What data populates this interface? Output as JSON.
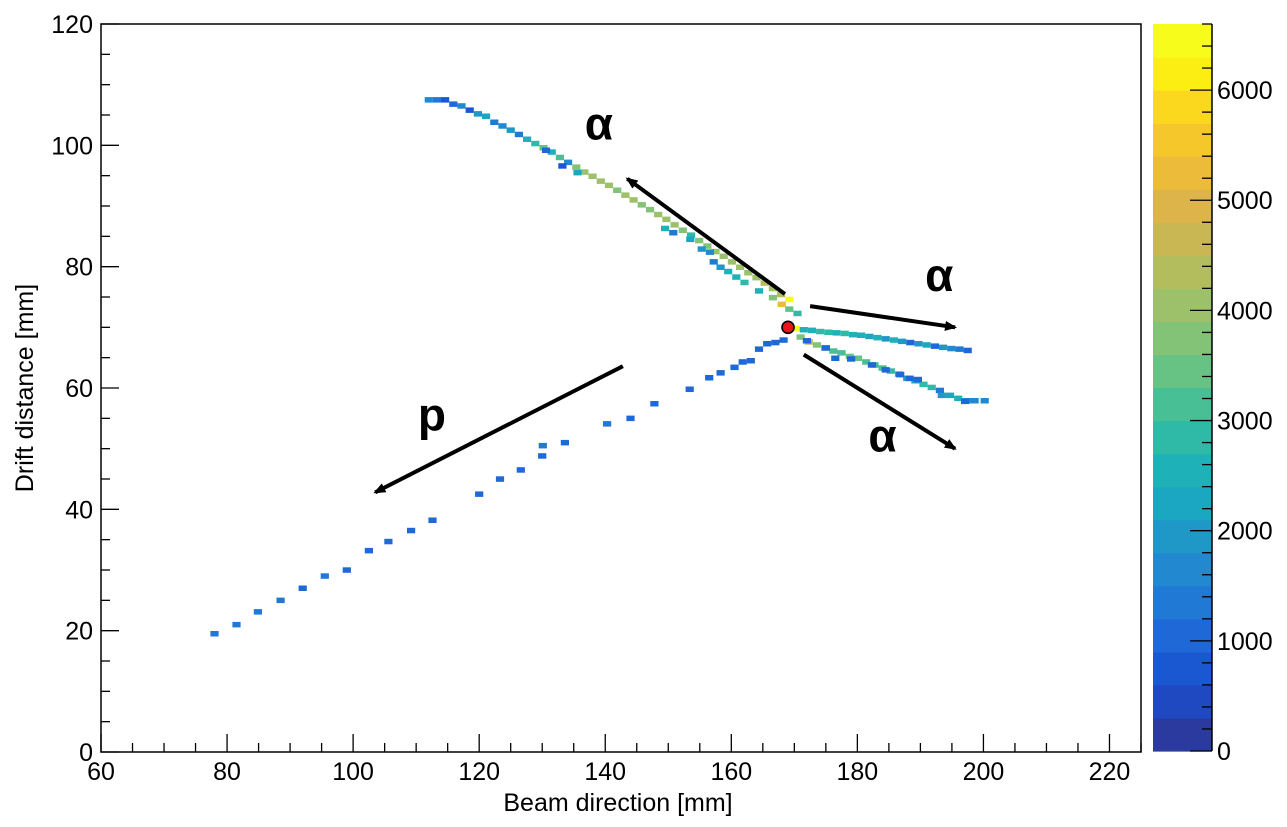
{
  "chart_data": {
    "type": "heatmap",
    "title": "",
    "xlabel": "Beam direction [mm]",
    "ylabel": "Drift distance [mm]",
    "xlim": [
      60,
      225
    ],
    "ylim": [
      0,
      120
    ],
    "x_ticks": [
      60,
      80,
      100,
      120,
      140,
      160,
      180,
      200,
      220
    ],
    "y_ticks": [
      0,
      20,
      40,
      60,
      80,
      100,
      120
    ],
    "colorbar": {
      "range": [
        0,
        6600
      ],
      "ticks": [
        0,
        1000,
        2000,
        3000,
        4000,
        5000,
        6000
      ],
      "colors": [
        "#2a3a9e",
        "#1f49c0",
        "#1a58d2",
        "#1e68d8",
        "#2179d6",
        "#2289d0",
        "#1f98c8",
        "#1ba6c2",
        "#1eb2b8",
        "#2fbaa7",
        "#48bf94",
        "#66c383",
        "#82c377",
        "#9cc16a",
        "#b4bd5e",
        "#c9b753",
        "#dcb44a",
        "#ecbb3a",
        "#f6c72b",
        "#fbd81e",
        "#fcee12",
        "#f7fc1b"
      ]
    },
    "vertex": {
      "x": 169.0,
      "y": 70.0,
      "color": "#e8151b"
    },
    "tracks": [
      {
        "name": "alpha-1",
        "bins": [
          [
            112,
            107.5,
            1500
          ],
          [
            113.3,
            107.5,
            1200
          ],
          [
            114.6,
            107.5,
            600
          ],
          [
            115.9,
            106.8,
            1000
          ],
          [
            117.2,
            106.5,
            1600
          ],
          [
            118.5,
            105.8,
            700
          ],
          [
            119.8,
            105.2,
            1800
          ],
          [
            121.1,
            104.8,
            2200
          ],
          [
            122.4,
            103.8,
            1300
          ],
          [
            123.7,
            103.2,
            1700
          ],
          [
            125,
            102.5,
            2000
          ],
          [
            126.3,
            101.8,
            1200
          ],
          [
            127.6,
            101.0,
            2600
          ],
          [
            128.9,
            100.3,
            2800
          ],
          [
            130.2,
            99.6,
            3400
          ],
          [
            131.5,
            98.9,
            2500
          ],
          [
            132.8,
            98.0,
            3200
          ],
          [
            134.1,
            97.2,
            1500
          ],
          [
            135.4,
            96.4,
            3700
          ],
          [
            136.7,
            95.6,
            3900
          ],
          [
            138.0,
            94.9,
            4100
          ],
          [
            139.3,
            94.1,
            3900
          ],
          [
            140.6,
            93.4,
            4000
          ],
          [
            141.9,
            92.6,
            3700
          ],
          [
            143.2,
            91.8,
            4000
          ],
          [
            144.5,
            91.0,
            4100
          ],
          [
            145.8,
            90.2,
            3800
          ],
          [
            147.1,
            89.4,
            3800
          ],
          [
            148.4,
            88.6,
            3900
          ],
          [
            149.7,
            87.8,
            4000
          ],
          [
            151.0,
            86.9,
            3900
          ],
          [
            152.3,
            86.0,
            3700
          ],
          [
            153.6,
            85.2,
            2800
          ],
          [
            154.9,
            84.3,
            3600
          ],
          [
            156.2,
            83.4,
            3800
          ],
          [
            157.5,
            82.5,
            3900
          ],
          [
            158.8,
            81.7,
            4000
          ],
          [
            160.1,
            80.8,
            4000
          ],
          [
            161.4,
            79.9,
            3900
          ],
          [
            162.7,
            79.0,
            4100
          ],
          [
            164.0,
            78.2,
            4000
          ],
          [
            165.3,
            77.3,
            4200
          ],
          [
            166.6,
            76.4,
            3900
          ],
          [
            167.9,
            75.4,
            4300
          ],
          [
            169.2,
            74.6,
            6500
          ]
        ]
      },
      {
        "name": "alpha-1-extra",
        "bins": [
          [
            130.6,
            99.2,
            1000
          ],
          [
            133.2,
            96.6,
            800
          ],
          [
            135.6,
            95.5,
            2200
          ],
          [
            149.5,
            86.3,
            2400
          ],
          [
            150.8,
            85.6,
            1400
          ],
          [
            153.5,
            84.5,
            2200
          ],
          [
            155.3,
            82.9,
            1800
          ],
          [
            156.6,
            82.4,
            1600
          ],
          [
            157.2,
            80.8,
            1400
          ],
          [
            158.3,
            79.9,
            2000
          ],
          [
            159.5,
            79.2,
            2500
          ],
          [
            160.8,
            78.3,
            2600
          ],
          [
            162.1,
            77.4,
            2800
          ],
          [
            164.4,
            76.0,
            2600
          ],
          [
            166.6,
            74.9,
            3800
          ],
          [
            168.0,
            73.8,
            5100
          ],
          [
            169.2,
            73.0,
            3400
          ],
          [
            170.5,
            72.3,
            2800
          ]
        ]
      },
      {
        "name": "alpha-2",
        "bins": [
          [
            170.2,
            69.8,
            6400
          ],
          [
            171.5,
            69.6,
            2500
          ],
          [
            172.8,
            69.5,
            2600
          ],
          [
            174.1,
            69.3,
            2800
          ],
          [
            175.4,
            69.2,
            2700
          ],
          [
            176.7,
            69.1,
            2600
          ],
          [
            178.0,
            69.0,
            2700
          ],
          [
            179.3,
            68.8,
            2500
          ],
          [
            180.6,
            68.7,
            2400
          ],
          [
            181.9,
            68.5,
            2300
          ],
          [
            183.2,
            68.3,
            2400
          ],
          [
            184.5,
            68.1,
            2000
          ],
          [
            185.8,
            67.9,
            2500
          ],
          [
            187.1,
            67.7,
            1800
          ],
          [
            188.4,
            67.5,
            1100
          ],
          [
            189.7,
            67.3,
            2000
          ],
          [
            191.0,
            67.1,
            2200
          ],
          [
            192.3,
            66.9,
            900
          ],
          [
            193.6,
            66.7,
            1800
          ],
          [
            194.9,
            66.5,
            1500
          ],
          [
            196.2,
            66.4,
            1200
          ],
          [
            197.5,
            66.2,
            1100
          ]
        ]
      },
      {
        "name": "alpha-3",
        "bins": [
          [
            171.0,
            68.4,
            3700
          ],
          [
            172.3,
            67.6,
            4300
          ],
          [
            173.6,
            67.1,
            3800
          ],
          [
            174.9,
            66.6,
            3500
          ],
          [
            176.2,
            66.1,
            3200
          ],
          [
            177.5,
            65.8,
            3100
          ],
          [
            178.8,
            65.2,
            3400
          ],
          [
            180.1,
            64.9,
            3400
          ],
          [
            181.4,
            64.3,
            3000
          ],
          [
            182.7,
            63.8,
            2800
          ],
          [
            184.0,
            63.3,
            3200
          ],
          [
            185.3,
            62.8,
            2800
          ],
          [
            186.6,
            62.3,
            2500
          ],
          [
            187.9,
            61.6,
            2100
          ],
          [
            189.2,
            61.2,
            2100
          ],
          [
            190.5,
            60.6,
            2800
          ],
          [
            191.8,
            60.1,
            2900
          ],
          [
            193.1,
            59.6,
            1400
          ],
          [
            193.4,
            58.8,
            1900
          ],
          [
            194.7,
            58.8,
            2100
          ],
          [
            196.0,
            58.3,
            2500
          ],
          [
            197.3,
            57.9,
            2000
          ],
          [
            198.6,
            57.9,
            1700
          ],
          [
            200.2,
            57.9,
            1700
          ]
        ]
      },
      {
        "name": "proton",
        "bins": [
          [
            78.0,
            19.5,
            1300
          ],
          [
            81.5,
            21.0,
            1200
          ],
          [
            84.9,
            23.1,
            1200
          ],
          [
            88.5,
            25.0,
            1300
          ],
          [
            92.0,
            27.0,
            1100
          ],
          [
            95.5,
            29.0,
            1200
          ],
          [
            99.0,
            30.0,
            1100
          ],
          [
            102.5,
            33.2,
            1100
          ],
          [
            105.6,
            34.7,
            1000
          ],
          [
            109.2,
            36.5,
            1100
          ],
          [
            112.6,
            38.2,
            1100
          ],
          [
            120.0,
            42.5,
            1100
          ],
          [
            123.3,
            45.0,
            1100
          ],
          [
            126.6,
            46.5,
            1100
          ],
          [
            130.0,
            48.8,
            1100
          ],
          [
            130.1,
            50.5,
            1200
          ],
          [
            133.6,
            51.0,
            1100
          ],
          [
            140.3,
            54.1,
            1200
          ],
          [
            144.0,
            55.0,
            1100
          ],
          [
            147.8,
            57.4,
            1100
          ],
          [
            153.4,
            59.8,
            1100
          ],
          [
            156.5,
            61.7,
            1100
          ],
          [
            158.3,
            62.5,
            1100
          ],
          [
            160.5,
            63.4,
            1100
          ],
          [
            161.8,
            64.3,
            1100
          ],
          [
            163.1,
            64.5,
            1100
          ],
          [
            164.4,
            66.4,
            1100
          ],
          [
            165.7,
            67.3,
            1000
          ],
          [
            167.0,
            67.5,
            1000
          ],
          [
            168.3,
            67.9,
            1000
          ],
          [
            172.0,
            67.8,
            1000
          ],
          [
            175.0,
            66.6,
            1000
          ],
          [
            176.5,
            64.9,
            1100
          ],
          [
            179.0,
            64.8,
            1100
          ],
          [
            182.3,
            63.8,
            1000
          ],
          [
            184.5,
            63.0,
            1100
          ],
          [
            186.8,
            62.2,
            1000
          ],
          [
            188.3,
            61.6,
            1100
          ],
          [
            189.6,
            61.4,
            1100
          ],
          [
            197.1,
            57.8,
            1100
          ]
        ]
      }
    ],
    "annotations": [
      {
        "label": "α",
        "text_at": [
          139.0,
          101.0
        ],
        "arrow_from": [
          168.5,
          75.5
        ],
        "arrow_to": [
          143.5,
          94.5
        ]
      },
      {
        "label": "α",
        "text_at": [
          193.0,
          76.0
        ],
        "arrow_from": [
          172.5,
          73.5
        ],
        "arrow_to": [
          195.5,
          70.0
        ]
      },
      {
        "label": "α",
        "text_at": [
          184.0,
          49.5
        ],
        "arrow_from": [
          171.5,
          65.5
        ],
        "arrow_to": [
          195.5,
          50.0
        ]
      },
      {
        "label": "p",
        "text_at": [
          112.5,
          53.0
        ],
        "arrow_from": [
          142.8,
          63.6
        ],
        "arrow_to": [
          103.5,
          42.8
        ]
      }
    ]
  }
}
